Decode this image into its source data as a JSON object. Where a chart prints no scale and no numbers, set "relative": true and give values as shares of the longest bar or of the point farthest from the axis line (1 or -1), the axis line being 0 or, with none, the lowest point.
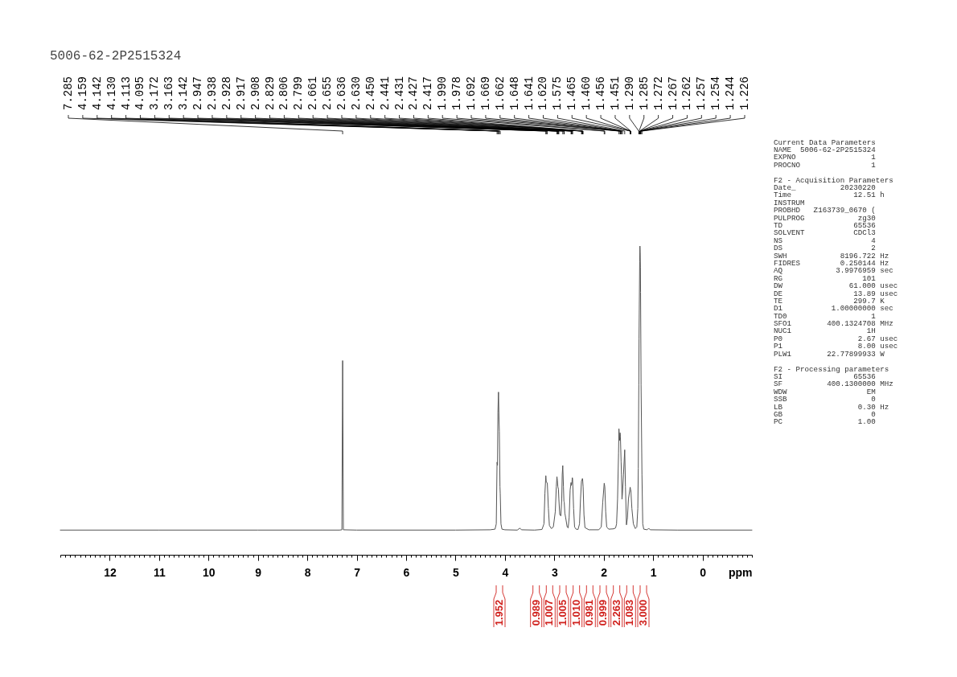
{
  "chart_data": {
    "type": "line",
    "title": "5006-62-2P2515324",
    "xlabel": "ppm",
    "relative": true,
    "xlim": [
      13,
      -1
    ],
    "xticks": [
      {
        "value": 13,
        "label": null
      },
      {
        "value": 12.9,
        "label": null
      },
      {
        "value": 12.8,
        "label": null
      },
      {
        "value": 12.7,
        "label": null
      },
      {
        "value": 12.6,
        "label": null
      },
      {
        "value": 12.5,
        "label": null
      },
      {
        "value": 12.4,
        "label": null
      },
      {
        "value": 12.3,
        "label": null
      },
      {
        "value": 12.2,
        "label": null
      },
      {
        "value": 12.1,
        "label": null
      },
      12,
      {
        "value": 11.9,
        "label": null
      },
      {
        "value": 11.8,
        "label": null
      },
      {
        "value": 11.7,
        "label": null
      },
      {
        "value": 11.6,
        "label": null
      },
      {
        "value": 11.5,
        "label": null
      },
      {
        "value": 11.4,
        "label": null
      },
      {
        "value": 11.3,
        "label": null
      },
      {
        "value": 11.2,
        "label": null
      },
      {
        "value": 11.1,
        "label": null
      },
      11,
      {
        "value": 10.9,
        "label": null
      },
      {
        "value": 10.8,
        "label": null
      },
      {
        "value": 10.7,
        "label": null
      },
      {
        "value": 10.6,
        "label": null
      },
      {
        "value": 10.5,
        "label": null
      },
      {
        "value": 10.4,
        "label": null
      },
      {
        "value": 10.3,
        "label": null
      },
      {
        "value": 10.2,
        "label": null
      },
      {
        "value": 10.1,
        "label": null
      },
      10,
      {
        "value": 9.9,
        "label": null
      },
      {
        "value": 9.8,
        "label": null
      },
      {
        "value": 9.7,
        "label": null
      },
      {
        "value": 9.6,
        "label": null
      },
      {
        "value": 9.5,
        "label": null
      },
      {
        "value": 9.4,
        "label": null
      },
      {
        "value": 9.3,
        "label": null
      },
      {
        "value": 9.2,
        "label": null
      },
      {
        "value": 9.1,
        "label": null
      },
      9,
      {
        "value": 8.9,
        "label": null
      },
      {
        "value": 8.8,
        "label": null
      },
      {
        "value": 8.7,
        "label": null
      },
      {
        "value": 8.6,
        "label": null
      },
      {
        "value": 8.5,
        "label": null
      },
      {
        "value": 8.4,
        "label": null
      },
      {
        "value": 8.3,
        "label": null
      },
      {
        "value": 8.2,
        "label": null
      },
      {
        "value": 8.1,
        "label": null
      },
      8,
      {
        "value": 7.9,
        "label": null
      },
      {
        "value": 7.8,
        "label": null
      },
      {
        "value": 7.7,
        "label": null
      },
      {
        "value": 7.6,
        "label": null
      },
      {
        "value": 7.5,
        "label": null
      },
      {
        "value": 7.4,
        "label": null
      },
      {
        "value": 7.3,
        "label": null
      },
      {
        "value": 7.2,
        "label": null
      },
      {
        "value": 7.1,
        "label": null
      },
      7,
      {
        "value": 6.9,
        "label": null
      },
      {
        "value": 6.8,
        "label": null
      },
      {
        "value": 6.7,
        "label": null
      },
      {
        "value": 6.6,
        "label": null
      },
      {
        "value": 6.5,
        "label": null
      },
      {
        "value": 6.4,
        "label": null
      },
      {
        "value": 6.3,
        "label": null
      },
      {
        "value": 6.2,
        "label": null
      },
      {
        "value": 6.1,
        "label": null
      },
      6,
      {
        "value": 5.9,
        "label": null
      },
      {
        "value": 5.8,
        "label": null
      },
      {
        "value": 5.7,
        "label": null
      },
      {
        "value": 5.6,
        "label": null
      },
      {
        "value": 5.5,
        "label": null
      },
      {
        "value": 5.4,
        "label": null
      },
      {
        "value": 5.3,
        "label": null
      },
      {
        "value": 5.2,
        "label": null
      },
      {
        "value": 5.1,
        "label": null
      },
      5,
      {
        "value": 4.9,
        "label": null
      },
      {
        "value": 4.8,
        "label": null
      },
      {
        "value": 4.7,
        "label": null
      },
      {
        "value": 4.6,
        "label": null
      },
      {
        "value": 4.5,
        "label": null
      },
      {
        "value": 4.4,
        "label": null
      },
      {
        "value": 4.3,
        "label": null
      },
      {
        "value": 4.2,
        "label": null
      },
      {
        "value": 4.1,
        "label": null
      },
      4,
      {
        "value": 3.9,
        "label": null
      },
      {
        "value": 3.8,
        "label": null
      },
      {
        "value": 3.7,
        "label": null
      },
      {
        "value": 3.6,
        "label": null
      },
      {
        "value": 3.5,
        "label": null
      },
      {
        "value": 3.4,
        "label": null
      },
      {
        "value": 3.3,
        "label": null
      },
      {
        "value": 3.2,
        "label": null
      },
      {
        "value": 3.1,
        "label": null
      },
      3,
      {
        "value": 2.9,
        "label": null
      },
      {
        "value": 2.8,
        "label": null
      },
      {
        "value": 2.7,
        "label": null
      },
      {
        "value": 2.6,
        "label": null
      },
      {
        "value": 2.5,
        "label": null
      },
      {
        "value": 2.4,
        "label": null
      },
      {
        "value": 2.3,
        "label": null
      },
      {
        "value": 2.2,
        "label": null
      },
      {
        "value": 2.1,
        "label": null
      },
      2,
      {
        "value": 1.9,
        "label": null
      },
      {
        "value": 1.8,
        "label": null
      },
      {
        "value": 1.7,
        "label": null
      },
      {
        "value": 1.6,
        "label": null
      },
      {
        "value": 1.5,
        "label": null
      },
      {
        "value": 1.4,
        "label": null
      },
      {
        "value": 1.3,
        "label": null
      },
      {
        "value": 1.2,
        "label": null
      },
      {
        "value": 1.1,
        "label": null
      },
      1,
      {
        "value": 0.9,
        "label": null
      },
      {
        "value": 0.8,
        "label": null
      },
      {
        "value": 0.7,
        "label": null
      },
      {
        "value": 0.6,
        "label": null
      },
      {
        "value": 0.5,
        "label": null
      },
      {
        "value": 0.4,
        "label": null
      },
      {
        "value": 0.3,
        "label": null
      },
      {
        "value": 0.2,
        "label": null
      },
      {
        "value": 0.1,
        "label": null
      },
      0,
      {
        "value": -0.1,
        "label": null
      },
      {
        "value": -0.2,
        "label": null
      },
      {
        "value": -0.3,
        "label": null
      },
      {
        "value": -0.4,
        "label": null
      },
      {
        "value": -0.5,
        "label": null
      },
      {
        "value": -0.6,
        "label": null
      },
      {
        "value": -0.7,
        "label": null
      },
      {
        "value": -0.8,
        "label": null
      },
      {
        "value": -0.9,
        "label": null
      },
      {
        "value": -1,
        "label": null
      }
    ],
    "x": [
      13.0,
      11.0,
      9.0,
      7.35,
      7.3,
      7.285,
      7.27,
      7.0,
      5.0,
      4.3,
      4.2,
      4.175,
      4.159,
      4.15,
      4.142,
      4.13,
      4.12,
      4.113,
      4.1,
      4.095,
      4.08,
      4.06,
      4.0,
      3.75,
      3.7,
      3.66,
      3.4,
      3.25,
      3.21,
      3.19,
      3.172,
      3.163,
      3.142,
      3.12,
      3.1,
      3.06,
      3.02,
      2.98,
      2.96,
      2.947,
      2.938,
      2.928,
      2.917,
      2.908,
      2.89,
      2.868,
      2.85,
      2.84,
      2.829,
      2.815,
      2.806,
      2.799,
      2.787,
      2.77,
      2.74,
      2.72,
      2.7,
      2.68,
      2.661,
      2.655,
      2.645,
      2.636,
      2.63,
      2.61,
      2.59,
      2.56,
      2.52,
      2.49,
      2.47,
      2.45,
      2.441,
      2.431,
      2.427,
      2.417,
      2.4,
      2.38,
      2.3,
      2.1,
      2.05,
      2.02,
      1.99,
      1.978,
      1.96,
      1.94,
      1.9,
      1.8,
      1.76,
      1.74,
      1.72,
      1.7,
      1.692,
      1.68,
      1.669,
      1.662,
      1.648,
      1.641,
      1.63,
      1.62,
      1.6,
      1.575,
      1.56,
      1.54,
      1.52,
      1.5,
      1.465,
      1.46,
      1.456,
      1.451,
      1.43,
      1.4,
      1.36,
      1.33,
      1.31,
      1.3,
      1.29,
      1.285,
      1.272,
      1.267,
      1.262,
      1.257,
      1.254,
      1.244,
      1.226,
      1.21,
      1.19,
      1.12,
      1.09,
      1.06,
      0.5,
      -1.0
    ],
    "series": [
      {
        "color": "#555555",
        "values": [
          0.08,
          0.08,
          0.08,
          0.08,
          0.081,
          0.629,
          0.081,
          0.08,
          0.08,
          0.081,
          0.083,
          0.1,
          0.3,
          0.29,
          0.46,
          0.527,
          0.44,
          0.4,
          0.22,
          0.2,
          0.1,
          0.083,
          0.081,
          0.08,
          0.086,
          0.081,
          0.08,
          0.082,
          0.1,
          0.2,
          0.256,
          0.235,
          0.233,
          0.15,
          0.095,
          0.085,
          0.09,
          0.14,
          0.22,
          0.253,
          0.24,
          0.22,
          0.213,
          0.18,
          0.13,
          0.126,
          0.18,
          0.26,
          0.289,
          0.22,
          0.174,
          0.17,
          0.135,
          0.12,
          0.09,
          0.087,
          0.12,
          0.21,
          0.234,
          0.225,
          0.23,
          0.25,
          0.245,
          0.15,
          0.09,
          0.083,
          0.082,
          0.1,
          0.18,
          0.239,
          0.243,
          0.247,
          0.245,
          0.22,
          0.13,
          0.088,
          0.081,
          0.081,
          0.09,
          0.17,
          0.232,
          0.22,
          0.14,
          0.09,
          0.083,
          0.084,
          0.087,
          0.1,
          0.18,
          0.33,
          0.408,
          0.37,
          0.395,
          0.382,
          0.3,
          0.26,
          0.18,
          0.2,
          0.26,
          0.34,
          0.22,
          0.097,
          0.12,
          0.18,
          0.219,
          0.215,
          0.212,
          0.21,
          0.15,
          0.1,
          0.085,
          0.09,
          0.15,
          0.28,
          0.55,
          0.7,
          0.95,
          1.0,
          0.98,
          0.93,
          0.85,
          0.55,
          0.26,
          0.1,
          0.083,
          0.081,
          0.086,
          0.081,
          0.08,
          0.08
        ]
      }
    ],
    "annotations": [
      {
        "text": "7.285",
        "x": 7.285
      },
      {
        "text": "4.159",
        "x": 4.159
      },
      {
        "text": "4.142",
        "x": 4.142
      },
      {
        "text": "4.130",
        "x": 4.13
      },
      {
        "text": "4.113",
        "x": 4.113
      },
      {
        "text": "4.095",
        "x": 4.095
      },
      {
        "text": "3.172",
        "x": 3.172
      },
      {
        "text": "3.163",
        "x": 3.163
      },
      {
        "text": "3.142",
        "x": 3.142
      },
      {
        "text": "2.947",
        "x": 2.947
      },
      {
        "text": "2.938",
        "x": 2.938
      },
      {
        "text": "2.928",
        "x": 2.928
      },
      {
        "text": "2.917",
        "x": 2.917
      },
      {
        "text": "2.908",
        "x": 2.908
      },
      {
        "text": "2.829",
        "x": 2.829
      },
      {
        "text": "2.806",
        "x": 2.806
      },
      {
        "text": "2.799",
        "x": 2.799
      },
      {
        "text": "2.661",
        "x": 2.661
      },
      {
        "text": "2.655",
        "x": 2.655
      },
      {
        "text": "2.636",
        "x": 2.636
      },
      {
        "text": "2.630",
        "x": 2.63
      },
      {
        "text": "2.450",
        "x": 2.45
      },
      {
        "text": "2.441",
        "x": 2.441
      },
      {
        "text": "2.431",
        "x": 2.431
      },
      {
        "text": "2.427",
        "x": 2.427
      },
      {
        "text": "2.417",
        "x": 2.417
      },
      {
        "text": "1.990",
        "x": 1.99
      },
      {
        "text": "1.978",
        "x": 1.978
      },
      {
        "text": "1.692",
        "x": 1.692
      },
      {
        "text": "1.669",
        "x": 1.669
      },
      {
        "text": "1.662",
        "x": 1.662
      },
      {
        "text": "1.648",
        "x": 1.648
      },
      {
        "text": "1.641",
        "x": 1.641
      },
      {
        "text": "1.620",
        "x": 1.62
      },
      {
        "text": "1.575",
        "x": 1.575
      },
      {
        "text": "1.465",
        "x": 1.465
      },
      {
        "text": "1.460",
        "x": 1.46
      },
      {
        "text": "1.456",
        "x": 1.456
      },
      {
        "text": "1.451",
        "x": 1.451
      },
      {
        "text": "1.290",
        "x": 1.29
      },
      {
        "text": "1.285",
        "x": 1.285
      },
      {
        "text": "1.272",
        "x": 1.272
      },
      {
        "text": "1.267",
        "x": 1.267
      },
      {
        "text": "1.262",
        "x": 1.262
      },
      {
        "text": "1.257",
        "x": 1.257
      },
      {
        "text": "1.254",
        "x": 1.254
      },
      {
        "text": "1.244",
        "x": 1.244
      },
      {
        "text": "1.226",
        "x": 1.226
      },
      "1.952",
      "0.989",
      "1.007",
      "1.005",
      "1.010",
      "0.981",
      "0.999",
      "2.263",
      "1.083",
      "3.000",
      "Current Data Parameters\nNAME  5006-62-2P2515324\nEXPNO                 1\nPROCNO                1",
      "F2 - Acquisition Parameters\nDate_          20230220\nTime              12.51 h\nINSTRUM\nPROBHD   Z163739_0670 (\nPULPROG            zg30\nTD                65536\nSOLVENT           CDCl3\nNS                    4\nDS                    2\nSWH            8196.722 Hz\nFIDRES         0.250144 Hz\nAQ            3.9976959 sec\nRG                  101\nDW               61.000 usec\nDE                13.89 usec\nTE                299.7 K\nD1           1.00000000 sec\nTD0                   1\nSFO1        400.1324708 MHz\nNUC1                 1H\nP0                 2.67 usec\nP1                 8.00 usec\nPLW1        22.77899933 W",
      "F2 - Processing parameters\nSI                65536\nSF          400.1300000 MHz\nWDW                  EM\nSSB                   0\nLB                 0.30 Hz\nGB                    0\nPC                 1.00"
    ]
  }
}
